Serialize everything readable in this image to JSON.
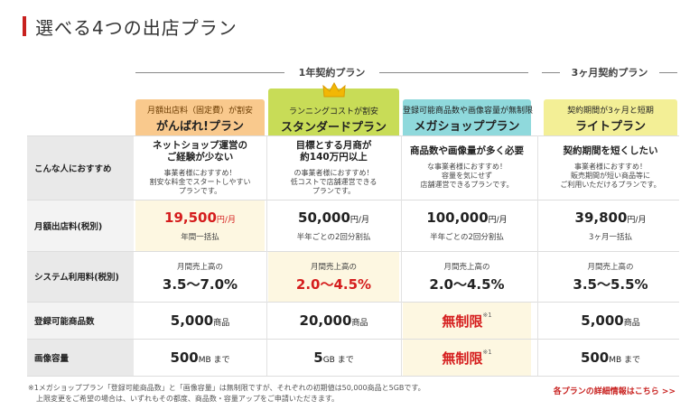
{
  "page_title": "選べる4つの出店プラン",
  "groups": {
    "annual": "1年契約プラン",
    "short": "3ヶ月契約プラン"
  },
  "plans": [
    {
      "sub": "月額出店料（固定費）が割安",
      "name": "がんばれ!プラン"
    },
    {
      "sub": "ランニングコストが割安",
      "name": "スタンダードプラン"
    },
    {
      "sub": "登録可能商品数や画像容量が無制限",
      "name": "メガショッププラン"
    },
    {
      "sub": "契約期間が3ヶ月と短期",
      "name": "ライトプラン"
    }
  ],
  "row_labels": {
    "recommend": "こんな人におすすめ",
    "monthly": "月額出店料(税別)",
    "system": "システム利用料(税別)",
    "items": "登録可能商品数",
    "images": "画像容量"
  },
  "recommend": [
    {
      "head": "ネットショップ運営の\nご経験が少ない",
      "desc": "事業者様におすすめ！\n割安な料金でスタートしやすい\nプランです。"
    },
    {
      "head": "目標とする月商が\n約140万円以上",
      "desc": "の事業者様におすすめ！\n低コストで店舗運営できる\nプランです。"
    },
    {
      "head": "商品数や画像量が多く必要",
      "desc": "な事業者様におすすめ！\n容量を気にせず\n店舗運営できるプランです。"
    },
    {
      "head": "契約期間を短くしたい",
      "desc": "事業者様におすすめ！\n販売期間が短い商品等に\nご利用いただけるプランです。"
    }
  ],
  "monthly": [
    {
      "amount": "19,500",
      "unit": "円/月",
      "note": "年間一括払"
    },
    {
      "amount": "50,000",
      "unit": "円/月",
      "note": "半年ごとの2回分割払"
    },
    {
      "amount": "100,000",
      "unit": "円/月",
      "note": "半年ごとの2回分割払"
    },
    {
      "amount": "39,800",
      "unit": "円/月",
      "note": "3ヶ月一括払"
    }
  ],
  "system": {
    "label": "月間売上高の",
    "values": [
      "3.5〜7.0%",
      "2.0〜4.5%",
      "2.0〜4.5%",
      "3.5〜5.5%"
    ]
  },
  "items": [
    {
      "value": "5,000",
      "unit": "商品"
    },
    {
      "value": "20,000",
      "unit": "商品"
    },
    {
      "value": "無制限",
      "unit": "※1"
    },
    {
      "value": "5,000",
      "unit": "商品"
    }
  ],
  "images": [
    {
      "value": "500",
      "unit": "MB まで"
    },
    {
      "value": "5",
      "unit": "GB まで"
    },
    {
      "value": "無制限",
      "unit": "※1"
    },
    {
      "value": "500",
      "unit": "MB まで"
    }
  ],
  "footnote_1": "※1メガショッププラン「登録可能商品数」と「画像容量」は無制限ですが、それぞれの初期値は50,000商品と5GBです。",
  "footnote_2": "上限変更をご希望の場合は、いずれもその都度、商品数・容量アップをご申請いただきます。",
  "details_link": "各プランの詳細情報はこちら >>",
  "colors": {
    "accent": "#c8211f",
    "plan1": "#f9c98d",
    "plan2": "#c8dc57",
    "plan3": "#8fd9dc",
    "plan4": "#f3ef96",
    "highlight_cell": "#fdf7e1"
  }
}
